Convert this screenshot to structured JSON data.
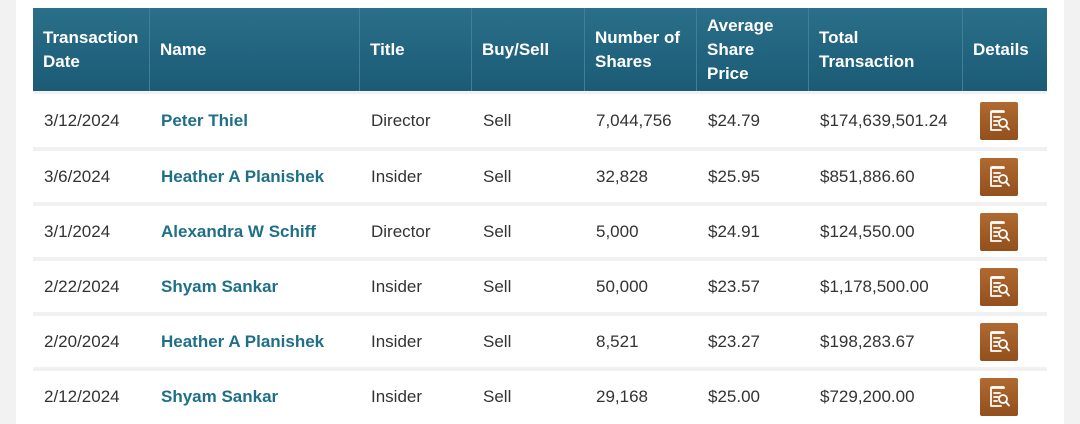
{
  "table": {
    "columns": [
      "Transaction Date",
      "Name",
      "Title",
      "Buy/Sell",
      "Number of Shares",
      "Average Share Price",
      "Total Transaction",
      "Details"
    ],
    "rows": [
      {
        "date": "3/12/2024",
        "name": "Peter Thiel",
        "title": "Director",
        "side": "Sell",
        "shares": "7,044,756",
        "price": "$24.79",
        "total": "$174,639,501.24"
      },
      {
        "date": "3/6/2024",
        "name": "Heather A Planishek",
        "title": "Insider",
        "side": "Sell",
        "shares": "32,828",
        "price": "$25.95",
        "total": "$851,886.60"
      },
      {
        "date": "3/1/2024",
        "name": "Alexandra W Schiff",
        "title": "Director",
        "side": "Sell",
        "shares": "5,000",
        "price": "$24.91",
        "total": "$124,550.00"
      },
      {
        "date": "2/22/2024",
        "name": "Shyam Sankar",
        "title": "Insider",
        "side": "Sell",
        "shares": "50,000",
        "price": "$23.57",
        "total": "$1,178,500.00"
      },
      {
        "date": "2/20/2024",
        "name": "Heather A Planishek",
        "title": "Insider",
        "side": "Sell",
        "shares": "8,521",
        "price": "$23.27",
        "total": "$198,283.67"
      },
      {
        "date": "2/12/2024",
        "name": "Shyam Sankar",
        "title": "Insider",
        "side": "Sell",
        "shares": "29,168",
        "price": "$25.00",
        "total": "$729,200.00"
      }
    ],
    "details_icon": "document-search-icon"
  },
  "colors": {
    "header_bg": "#1f6581",
    "name_link": "#1f6f88",
    "details_button": "#a0602a"
  }
}
